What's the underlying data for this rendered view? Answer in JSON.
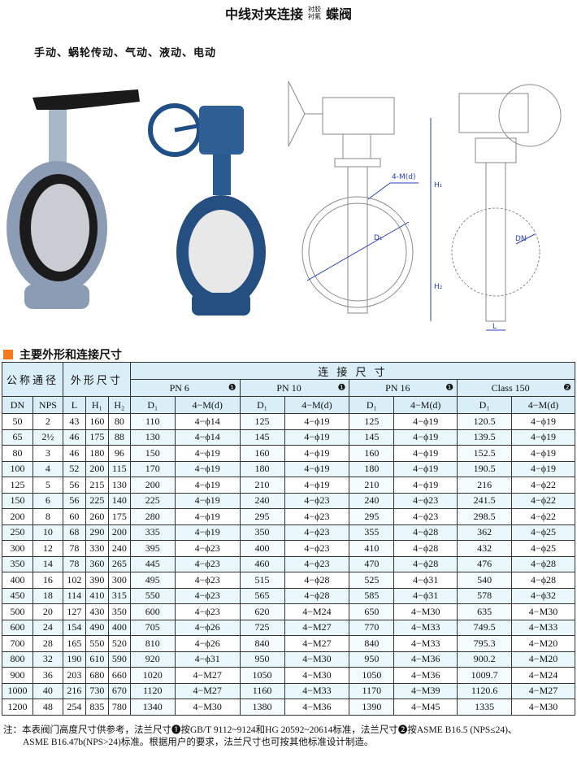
{
  "header": {
    "title_main": "中线对夹连接",
    "title_lining": [
      "衬胶",
      "衬氟"
    ],
    "title_suffix": "蝶阀",
    "subtitle": "手动、蜗轮传动、气动、液动、电动"
  },
  "drawing_labels": {
    "h1": "H₁",
    "h2": "H₂",
    "d1": "D₁",
    "bolt": "4-M(d)",
    "dn": "DN",
    "l": "L"
  },
  "section": {
    "title": "主要外形和连接尺寸",
    "accent_color": "#f37a1f"
  },
  "table": {
    "group_headers": {
      "nominal": "公称通径",
      "outline": "外形尺寸",
      "connection": "连 接 尺 寸"
    },
    "standards": [
      {
        "label": "PN 6",
        "marker": "❶"
      },
      {
        "label": "PN 10",
        "marker": "❶"
      },
      {
        "label": "PN 16",
        "marker": "❶"
      },
      {
        "label": "Class 150",
        "marker": "❷"
      }
    ],
    "columns": [
      "DN",
      "NPS",
      "L",
      "H₁",
      "H₂",
      "D₁",
      "4−M(d)",
      "D₁",
      "4−M(d)",
      "D₁",
      "4−M(d)",
      "D₁",
      "4−M(d)"
    ],
    "rows": [
      [
        "50",
        "2",
        "43",
        "160",
        "80",
        "110",
        "4−ϕ14",
        "125",
        "4−ϕ19",
        "125",
        "4−ϕ19",
        "120.5",
        "4−ϕ19"
      ],
      [
        "65",
        "2½",
        "46",
        "175",
        "88",
        "130",
        "4−ϕ14",
        "145",
        "4−ϕ19",
        "145",
        "4−ϕ19",
        "139.5",
        "4−ϕ19"
      ],
      [
        "80",
        "3",
        "46",
        "180",
        "96",
        "150",
        "4−ϕ19",
        "160",
        "4−ϕ19",
        "160",
        "4−ϕ19",
        "152.5",
        "4−ϕ19"
      ],
      [
        "100",
        "4",
        "52",
        "200",
        "115",
        "170",
        "4−ϕ19",
        "180",
        "4−ϕ19",
        "180",
        "4−ϕ19",
        "190.5",
        "4−ϕ19"
      ],
      [
        "125",
        "5",
        "56",
        "215",
        "130",
        "200",
        "4−ϕ19",
        "210",
        "4−ϕ19",
        "210",
        "4−ϕ19",
        "216",
        "4−ϕ22"
      ],
      [
        "150",
        "6",
        "56",
        "225",
        "140",
        "225",
        "4−ϕ19",
        "240",
        "4−ϕ23",
        "240",
        "4−ϕ23",
        "241.5",
        "4−ϕ22"
      ],
      [
        "200",
        "8",
        "60",
        "260",
        "175",
        "280",
        "4−ϕ19",
        "295",
        "4−ϕ23",
        "295",
        "4−ϕ23",
        "298.5",
        "4−ϕ22"
      ],
      [
        "250",
        "10",
        "68",
        "290",
        "200",
        "335",
        "4−ϕ19",
        "350",
        "4−ϕ23",
        "355",
        "4−ϕ28",
        "362",
        "4−ϕ25"
      ],
      [
        "300",
        "12",
        "78",
        "330",
        "240",
        "395",
        "4−ϕ23",
        "400",
        "4−ϕ23",
        "410",
        "4−ϕ28",
        "432",
        "4−ϕ25"
      ],
      [
        "350",
        "14",
        "78",
        "360",
        "265",
        "445",
        "4−ϕ23",
        "460",
        "4−ϕ23",
        "470",
        "4−ϕ28",
        "476",
        "4−ϕ28"
      ],
      [
        "400",
        "16",
        "102",
        "390",
        "300",
        "495",
        "4−ϕ23",
        "515",
        "4−ϕ28",
        "525",
        "4−ϕ31",
        "540",
        "4−ϕ28"
      ],
      [
        "450",
        "18",
        "114",
        "410",
        "315",
        "550",
        "4−ϕ23",
        "565",
        "4−ϕ28",
        "585",
        "4−ϕ31",
        "578",
        "4−ϕ32"
      ],
      [
        "500",
        "20",
        "127",
        "430",
        "350",
        "600",
        "4−ϕ23",
        "620",
        "4−M24",
        "650",
        "4−M30",
        "635",
        "4−M30"
      ],
      [
        "600",
        "24",
        "154",
        "490",
        "400",
        "705",
        "4−ϕ26",
        "725",
        "4−M27",
        "770",
        "4−M33",
        "749.5",
        "4−M33"
      ],
      [
        "700",
        "28",
        "165",
        "550",
        "520",
        "810",
        "4−ϕ26",
        "840",
        "4−M27",
        "840",
        "4−M33",
        "795.3",
        "4−M20"
      ],
      [
        "800",
        "32",
        "190",
        "610",
        "590",
        "920",
        "4−ϕ31",
        "950",
        "4−M30",
        "950",
        "4−M36",
        "900.2",
        "4−M20"
      ],
      [
        "900",
        "36",
        "203",
        "680",
        "660",
        "1020",
        "4−M27",
        "1050",
        "4−M30",
        "1050",
        "4−M36",
        "1009.7",
        "4−M24"
      ],
      [
        "1000",
        "40",
        "216",
        "730",
        "670",
        "1120",
        "4−M27",
        "1160",
        "4−M33",
        "1170",
        "4−M39",
        "1120.6",
        "4−M27"
      ],
      [
        "1200",
        "48",
        "254",
        "835",
        "780",
        "1340",
        "4−M30",
        "1380",
        "4−M36",
        "1390",
        "4−M45",
        "1335",
        "4−M30"
      ]
    ]
  },
  "note": {
    "line1": "注：本表阀门高度尺寸供参考，法兰尺寸❶按GB/T 9112~9124和HG 20592~20614标准，法兰尺寸❷按ASME B16.5 (NPS≤24)、",
    "line2": "ASME B16.47b(NPS>24)标准。根据用户的要求，法兰尺寸也可按其他标准设计制造。"
  }
}
